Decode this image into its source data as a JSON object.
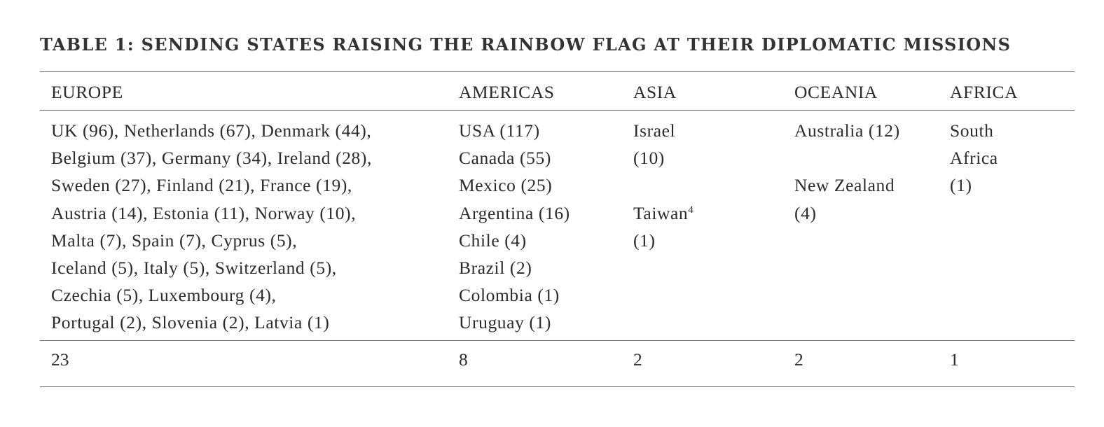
{
  "table": {
    "title": "TABLE 1: SENDING STATES RAISING THE RAINBOW FLAG AT THEIR DIPLOMATIC MISSIONS",
    "headers": {
      "europe": "EUROPE",
      "americas": "AMERICAS",
      "asia": "ASIA",
      "oceania": "OCEANIA",
      "africa": "AFRICA"
    },
    "europe_lines": [
      "UK (96), Netherlands (67), Denmark (44),",
      "Belgium (37), Germany (34), Ireland (28),",
      "Sweden (27), Finland (21), France (19),",
      "Austria (14), Estonia (11), Norway (10),",
      "Malta (7), Spain (7), Cyprus (5),",
      "Iceland (5), Italy (5), Switzerland (5),",
      "Czechia (5), Luxembourg (4),",
      "Portugal (2), Slovenia (2), Latvia (1)"
    ],
    "americas_lines": [
      "USA (117)",
      "Canada (55)",
      "Mexico (25)",
      "Argentina (16)",
      "Chile (4)",
      "Brazil (2)",
      "Colombia (1)",
      "Uruguay (1)"
    ],
    "asia": {
      "israel": "Israel",
      "israel_count": "(10)",
      "taiwan": "Taiwan",
      "taiwan_footnote": "4",
      "taiwan_count": "(1)"
    },
    "oceania": {
      "australia": "Australia (12)",
      "new_zealand": "New Zealand",
      "new_zealand_count": "(4)"
    },
    "africa": {
      "line1": "South",
      "line2": "Africa",
      "line3": "(1)"
    },
    "totals": {
      "europe": "23",
      "americas": "8",
      "asia": "2",
      "oceania": "2",
      "africa": "1"
    }
  }
}
